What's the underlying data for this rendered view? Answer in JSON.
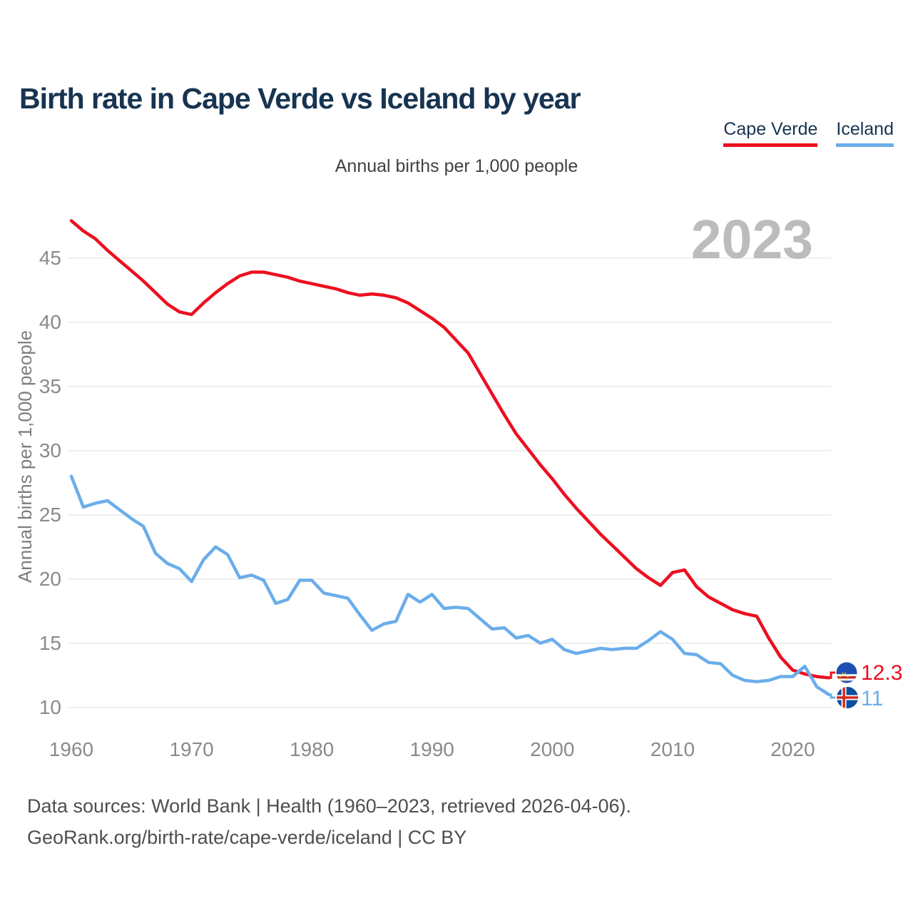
{
  "header": {
    "title": "Birth rate in Cape Verde vs Iceland by year"
  },
  "legend": [
    {
      "label": "Cape Verde",
      "color": "#ec0f1f"
    },
    {
      "label": "Iceland",
      "color": "#6badea"
    }
  ],
  "subtitle": "Annual births per 1,000 people",
  "watermark": "2023",
  "chart_data": {
    "type": "line",
    "title": "Birth rate in Cape Verde vs Iceland by year",
    "ylabel": "Annual births per 1,000 people",
    "xlabel": "",
    "xlim": [
      1960,
      2023
    ],
    "ylim": [
      10,
      48
    ],
    "xticks": [
      1960,
      1970,
      1980,
      1990,
      2000,
      2010,
      2020
    ],
    "yticks": [
      10,
      15,
      20,
      25,
      30,
      35,
      40,
      45
    ],
    "grid": "horizontal",
    "legend_position": "top-right",
    "x": [
      1960,
      1961,
      1962,
      1963,
      1964,
      1965,
      1966,
      1967,
      1968,
      1969,
      1970,
      1971,
      1972,
      1973,
      1974,
      1975,
      1976,
      1977,
      1978,
      1979,
      1980,
      1981,
      1982,
      1983,
      1984,
      1985,
      1986,
      1987,
      1988,
      1989,
      1990,
      1991,
      1992,
      1993,
      1994,
      1995,
      1996,
      1997,
      1998,
      1999,
      2000,
      2001,
      2002,
      2003,
      2004,
      2005,
      2006,
      2007,
      2008,
      2009,
      2010,
      2011,
      2012,
      2013,
      2014,
      2015,
      2016,
      2017,
      2018,
      2019,
      2020,
      2021,
      2022,
      2023
    ],
    "series": [
      {
        "id": "cape-verde",
        "name": "Cape Verde",
        "color": "#ec0f1f",
        "end_label": "12.3",
        "flag": "cape-verde-flag",
        "values": [
          47.9,
          47.1,
          46.5,
          45.6,
          44.8,
          44.0,
          43.2,
          42.3,
          41.4,
          40.8,
          40.6,
          41.5,
          42.3,
          43.0,
          43.6,
          43.9,
          43.9,
          43.7,
          43.5,
          43.2,
          43.0,
          42.8,
          42.6,
          42.3,
          42.1,
          42.2,
          42.1,
          41.9,
          41.5,
          40.9,
          40.3,
          39.6,
          38.6,
          37.6,
          36.0,
          34.4,
          32.8,
          31.3,
          30.1,
          28.9,
          27.8,
          26.6,
          25.5,
          24.5,
          23.5,
          22.6,
          21.7,
          20.8,
          20.1,
          19.5,
          20.5,
          20.7,
          19.4,
          18.6,
          18.1,
          17.6,
          17.3,
          17.1,
          15.4,
          13.9,
          12.9,
          12.6,
          12.4,
          12.3
        ]
      },
      {
        "id": "iceland",
        "name": "Iceland",
        "color": "#6badea",
        "end_label": "11",
        "flag": "iceland-flag",
        "values": [
          28.0,
          25.6,
          25.9,
          26.1,
          25.4,
          24.7,
          24.1,
          22.0,
          21.2,
          20.8,
          19.8,
          21.5,
          22.5,
          21.9,
          20.1,
          20.3,
          19.9,
          18.1,
          18.4,
          19.9,
          19.9,
          18.9,
          18.7,
          18.5,
          17.2,
          16.0,
          16.5,
          16.7,
          18.8,
          18.2,
          18.8,
          17.7,
          17.8,
          17.7,
          16.9,
          16.1,
          16.2,
          15.4,
          15.6,
          15.0,
          15.3,
          14.5,
          14.2,
          14.4,
          14.6,
          14.5,
          14.6,
          14.6,
          15.2,
          15.9,
          15.3,
          14.2,
          14.1,
          13.5,
          13.4,
          12.5,
          12.1,
          12.0,
          12.1,
          12.4,
          12.4,
          13.2,
          11.6,
          11.0
        ]
      }
    ]
  },
  "footer": {
    "line1": "Data sources: World Bank | Health (1960–2023, retrieved 2026-04-06).",
    "line2": "GeoRank.org/birth-rate/cape-verde/iceland | CC BY"
  }
}
